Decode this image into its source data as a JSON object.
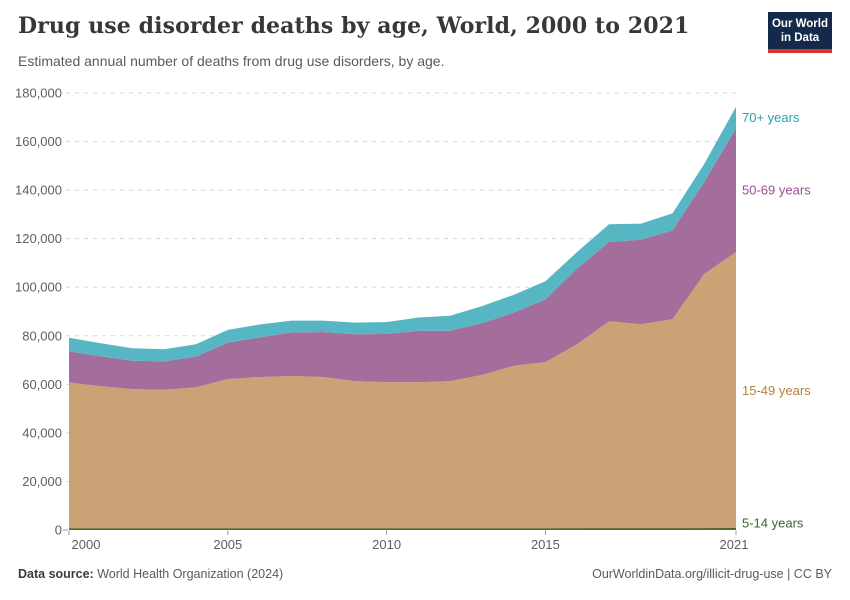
{
  "header": {
    "title": "Drug use disorder deaths by age, World, 2000 to 2021",
    "subtitle": "Estimated annual number of deaths from drug use disorders, by age.",
    "logo": {
      "line1": "Our World",
      "line2": "in Data"
    }
  },
  "footer": {
    "source_label": "Data source:",
    "source_value": "World Health Organization (2024)",
    "right_text": "OurWorldinData.org/illicit-drug-use | CC BY"
  },
  "chart_data": {
    "type": "area",
    "stacked": true,
    "title": "Drug use disorder deaths by age, World, 2000 to 2021",
    "xlabel": "",
    "ylabel": "",
    "ylim": [
      0,
      180000
    ],
    "grid": "dashed-horizontal",
    "legend_position": "right-edge-labels",
    "x": [
      2000,
      2001,
      2002,
      2003,
      2004,
      2005,
      2006,
      2007,
      2008,
      2009,
      2010,
      2011,
      2012,
      2013,
      2014,
      2015,
      2016,
      2017,
      2018,
      2019,
      2020,
      2021
    ],
    "x_ticks": [
      2000,
      2005,
      2010,
      2015,
      2021
    ],
    "y_ticks": [
      0,
      20000,
      40000,
      60000,
      80000,
      100000,
      120000,
      140000,
      160000,
      180000
    ],
    "series": [
      {
        "name": "5-14 years",
        "color": "#4c6b2a",
        "label_color": "#35682c",
        "values": [
          350,
          340,
          330,
          330,
          330,
          340,
          340,
          340,
          340,
          330,
          330,
          330,
          330,
          340,
          350,
          350,
          360,
          370,
          380,
          390,
          450,
          500
        ]
      },
      {
        "name": "15-49 years",
        "color": "#c9a376",
        "label_color": "#b3813c",
        "values": [
          60400,
          58900,
          57700,
          57400,
          58500,
          61800,
          62700,
          63100,
          62700,
          61000,
          60600,
          60500,
          61000,
          63500,
          67300,
          68800,
          76200,
          85600,
          84400,
          86500,
          105000,
          114000
        ]
      },
      {
        "name": "50-69 years",
        "color": "#a36d9c",
        "label_color": "#9a4d90",
        "values": [
          12800,
          12300,
          11700,
          11700,
          12600,
          15100,
          16300,
          17900,
          18500,
          19300,
          19800,
          21200,
          20700,
          21400,
          21800,
          25800,
          31200,
          32600,
          34800,
          36500,
          37900,
          51000
        ]
      },
      {
        "name": "70+ years",
        "color": "#56b6c3",
        "label_color": "#2d9cb0",
        "values": [
          5600,
          5400,
          5100,
          5000,
          5100,
          5200,
          5300,
          4900,
          4700,
          4800,
          4900,
          5500,
          6200,
          7000,
          7400,
          7500,
          6800,
          7400,
          6600,
          7000,
          7400,
          8800
        ]
      }
    ],
    "totals_note": "stacked totals range from about 74,400 (2003) to about 174,300 (2021)"
  }
}
